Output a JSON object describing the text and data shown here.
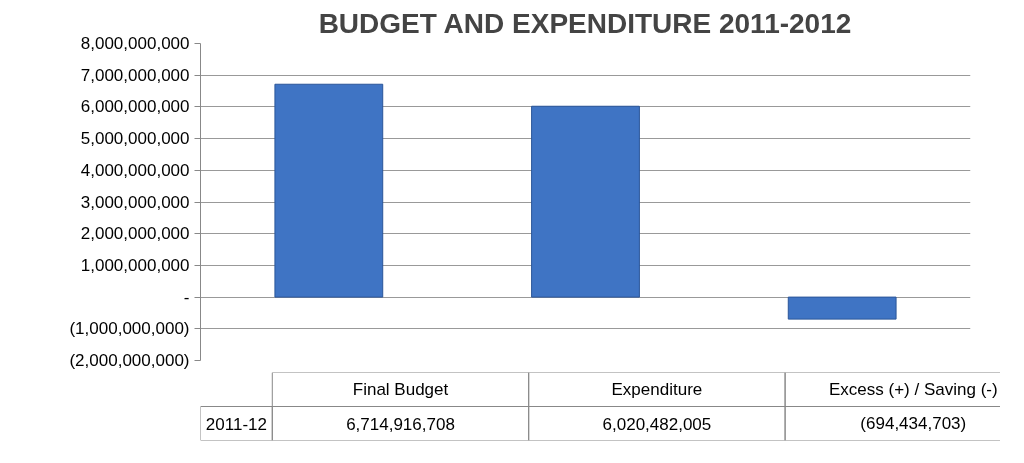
{
  "chart_data": {
    "type": "bar",
    "title": "BUDGET AND EXPENDITURE 2011-2012",
    "categories": [
      "Final Budget",
      "Expenditure",
      "Excess (+) / Saving (-)"
    ],
    "series": [
      {
        "name": "2011-12",
        "color": "#3f74c4",
        "values": [
          6714916708,
          6020482005,
          -694434703
        ],
        "value_labels": [
          "6,714,916,708",
          "6,020,482,005",
          "(694,434,703)"
        ]
      }
    ],
    "ylim": [
      -2000000000,
      8000000000
    ],
    "yticks": [
      {
        "value": -2000000000,
        "label": "(2,000,000,000)"
      },
      {
        "value": -1000000000,
        "label": "(1,000,000,000)"
      },
      {
        "value": 0,
        "label": "-"
      },
      {
        "value": 1000000000,
        "label": "1,000,000,000"
      },
      {
        "value": 2000000000,
        "label": "2,000,000,000"
      },
      {
        "value": 3000000000,
        "label": "3,000,000,000"
      },
      {
        "value": 4000000000,
        "label": "4,000,000,000"
      },
      {
        "value": 5000000000,
        "label": "5,000,000,000"
      },
      {
        "value": 6000000000,
        "label": "6,000,000,000"
      },
      {
        "value": 7000000000,
        "label": "7,000,000,000"
      },
      {
        "value": 8000000000,
        "label": "8,000,000,000"
      }
    ],
    "grid": "y"
  }
}
